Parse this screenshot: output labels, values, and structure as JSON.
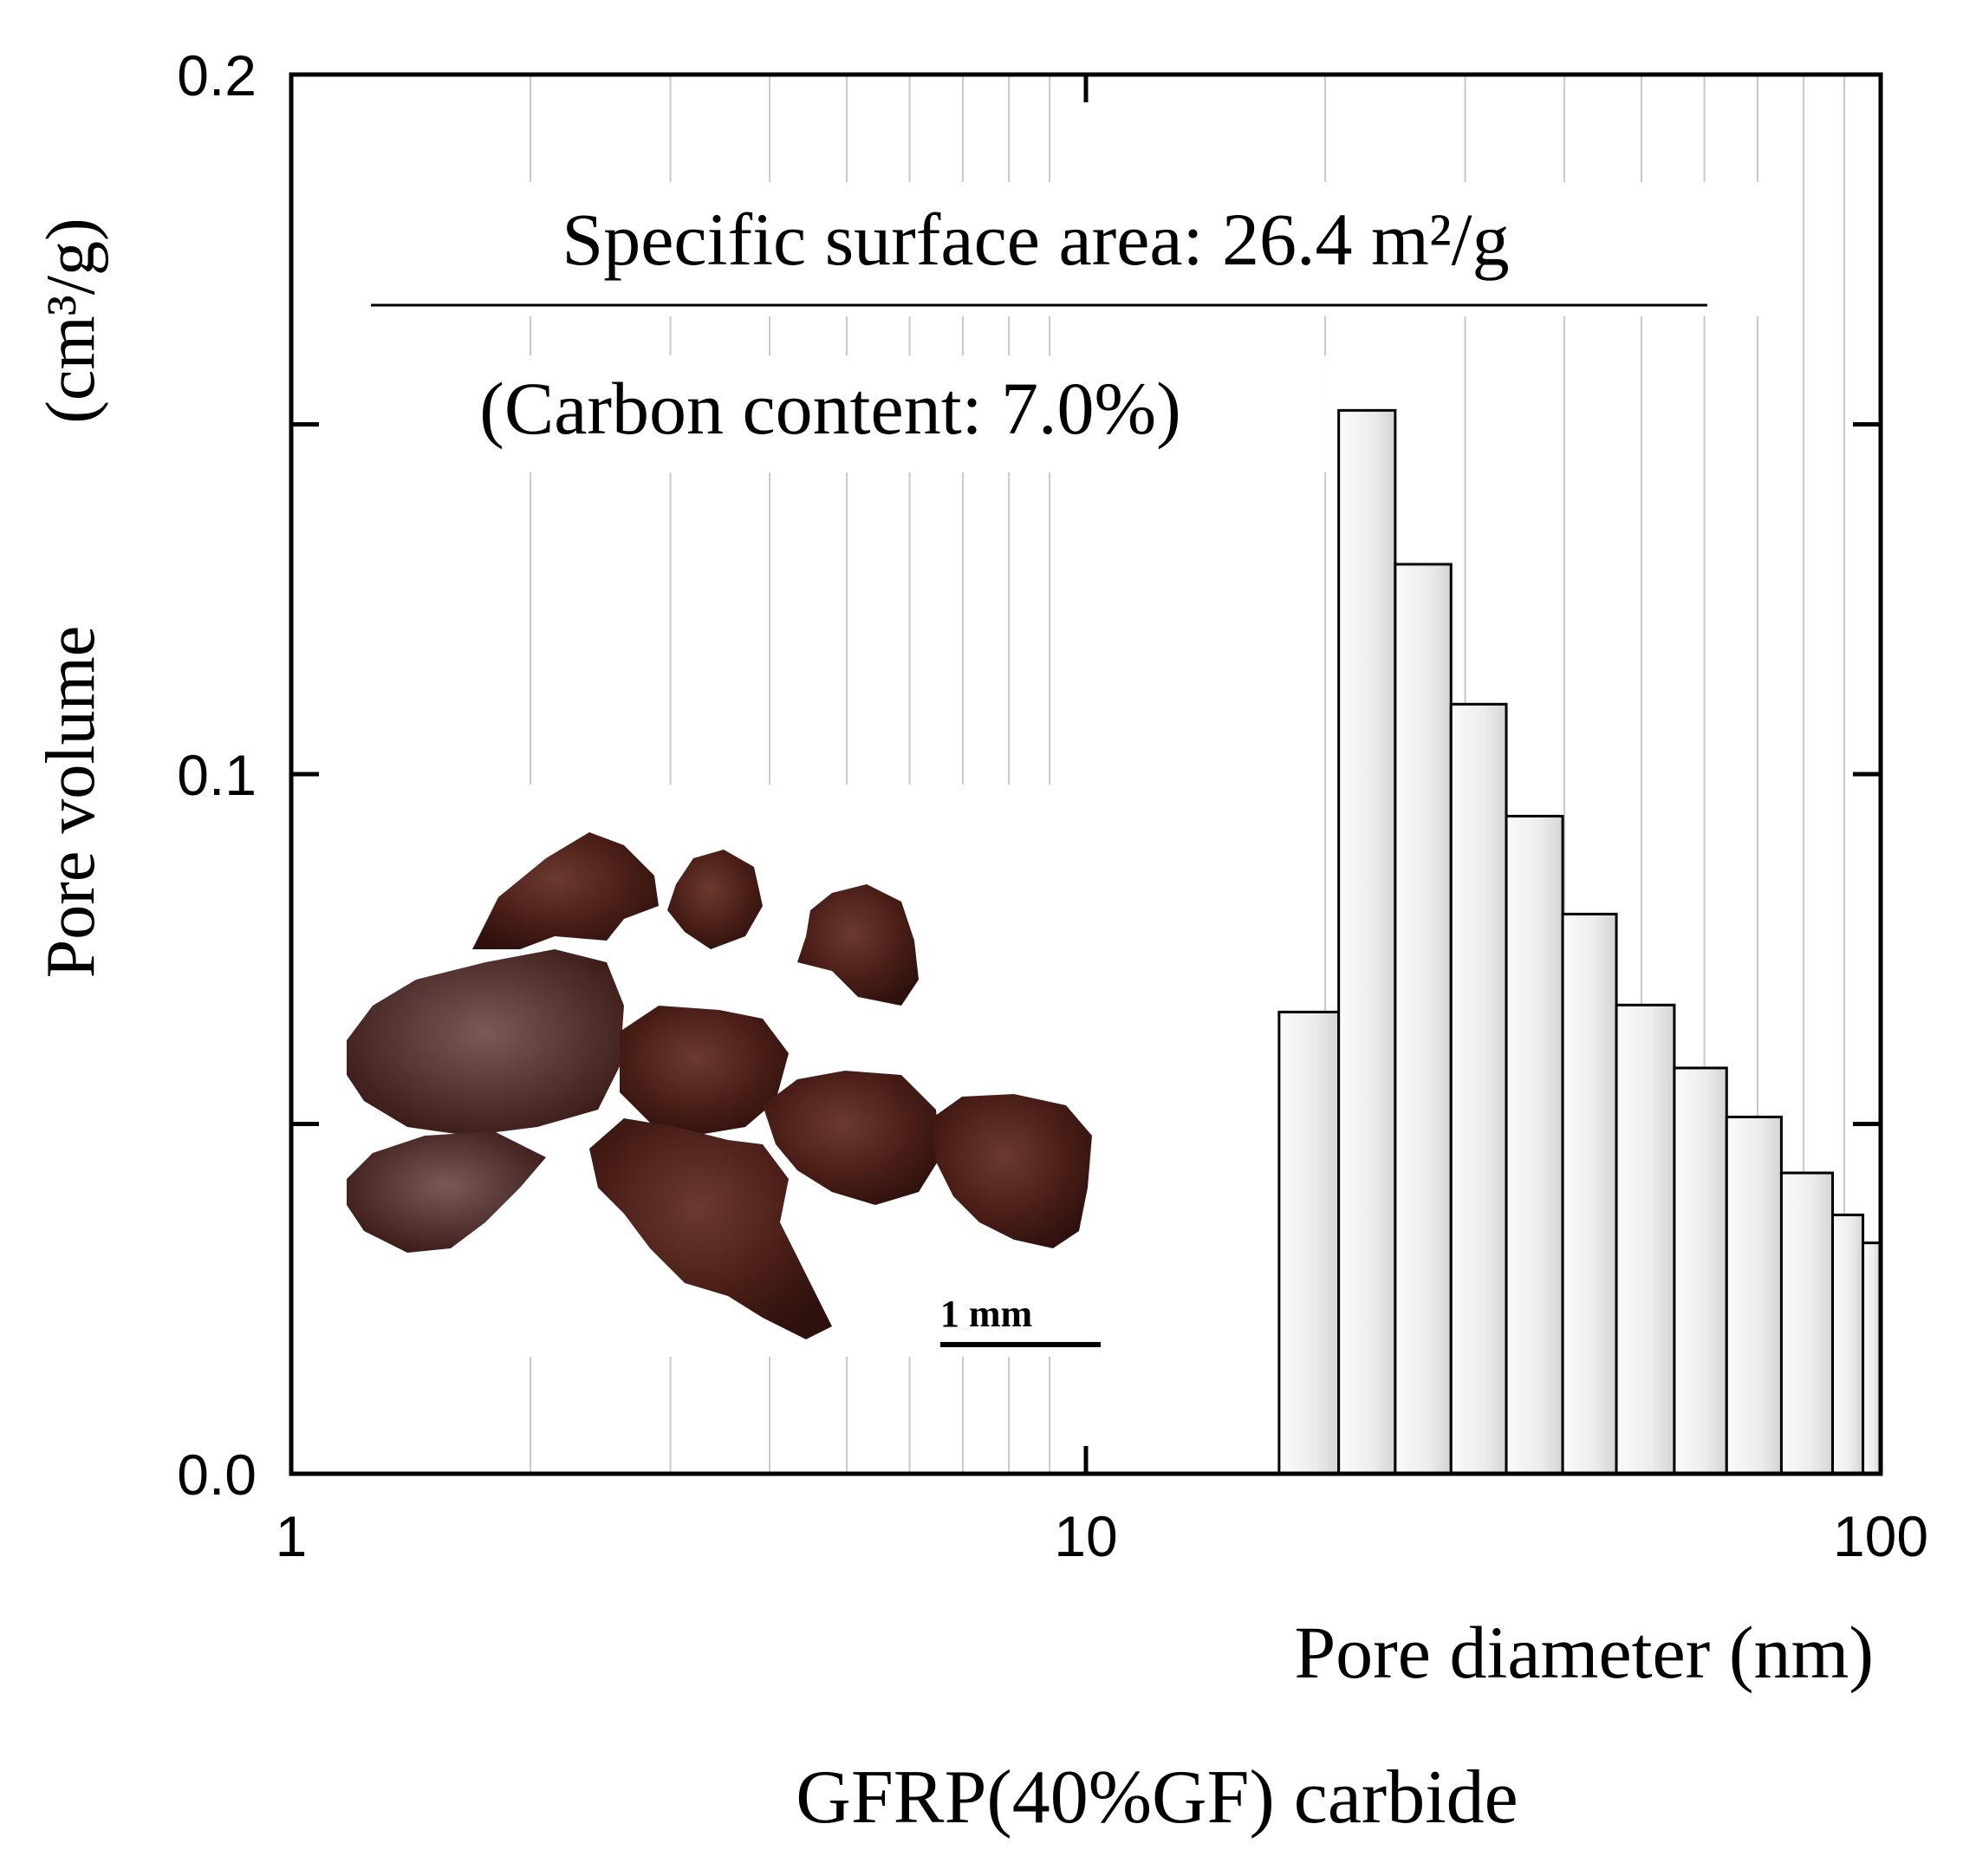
{
  "chart_data": {
    "type": "bar",
    "title": "GFRP(40%GF) carbide",
    "xlabel": "Pore diameter (nm)",
    "ylabel_main": "Pore volume",
    "ylabel_unit": "(cm³/g)",
    "x_scale": "log",
    "xlim": [
      1,
      100
    ],
    "ylim": [
      0.0,
      0.2
    ],
    "x_tick_labels": [
      "1",
      "10",
      "100"
    ],
    "x_tick_values": [
      1,
      10,
      100
    ],
    "y_tick_labels": [
      "0.0",
      "0.1",
      "0.2"
    ],
    "y_tick_values": [
      0.0,
      0.1,
      0.2
    ],
    "grid": "vertical minor log gridlines",
    "annotations": {
      "surface_area": "Specific surface area: 26.4 m²/g",
      "carbon_content": "(Carbon content: 7.0%)",
      "scale_bar": "1 mm"
    },
    "bars": [
      {
        "x0": 17.5,
        "x1": 20.8,
        "value": 0.066
      },
      {
        "x0": 20.8,
        "x1": 24.5,
        "value": 0.152
      },
      {
        "x0": 24.5,
        "x1": 28.8,
        "value": 0.13
      },
      {
        "x0": 28.8,
        "x1": 33.8,
        "value": 0.11
      },
      {
        "x0": 33.8,
        "x1": 39.8,
        "value": 0.094
      },
      {
        "x0": 39.8,
        "x1": 46.5,
        "value": 0.08
      },
      {
        "x0": 46.5,
        "x1": 55.0,
        "value": 0.067
      },
      {
        "x0": 55.0,
        "x1": 64.0,
        "value": 0.058
      },
      {
        "x0": 64.0,
        "x1": 75.0,
        "value": 0.051
      },
      {
        "x0": 75.0,
        "x1": 87.0,
        "value": 0.043
      },
      {
        "x0": 87.0,
        "x1": 95.0,
        "value": 0.037
      },
      {
        "x0": 95.0,
        "x1": 100.0,
        "value": 0.033
      }
    ],
    "colors": {
      "bar_fill_light": "#fbfbfb",
      "bar_fill_dark": "#d6d6d6",
      "grid": "#c8c8c8",
      "axis": "#000000",
      "particle": "#4a1d17"
    }
  }
}
